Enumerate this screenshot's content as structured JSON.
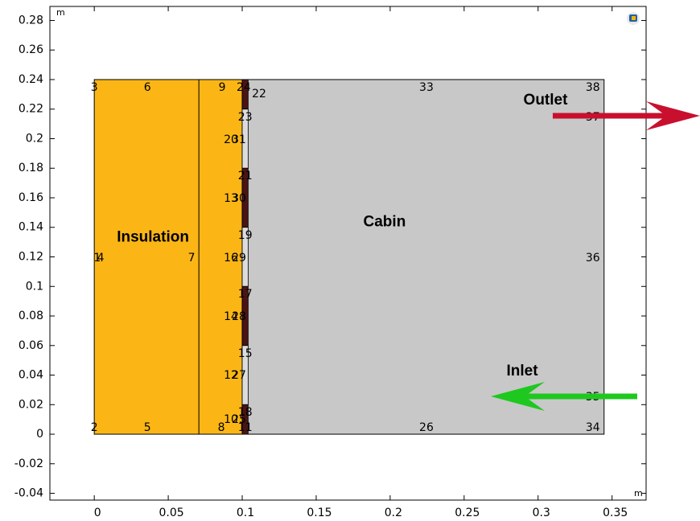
{
  "chart_data": {
    "type": "geometry",
    "x_unit": "m",
    "y_unit": "m",
    "xlim": [
      -0.03,
      0.373
    ],
    "ylim": [
      -0.0446,
      0.2895
    ],
    "xticks": [
      0,
      0.05,
      0.1,
      0.15,
      0.2,
      0.25,
      0.3,
      0.35
    ],
    "yticks": [
      -0.04,
      -0.02,
      0,
      0.02,
      0.04,
      0.06,
      0.08,
      0.1,
      0.12,
      0.14,
      0.16,
      0.18,
      0.2,
      0.22,
      0.24,
      0.26,
      0.28
    ],
    "domains": [
      {
        "name": "Insulation",
        "color": "#fbb616",
        "x": [
          0,
          0.1
        ],
        "y": [
          0,
          0.24
        ],
        "divider": 0.0707
      },
      {
        "name": "Cabin",
        "color": "#c8c8c8",
        "x": [
          0.1,
          0.3446
        ],
        "y": [
          0,
          0.24
        ]
      }
    ],
    "boundaries": [
      {
        "color": "#4a1414",
        "x": [
          0.1,
          0.104
        ],
        "y": [
          0.22,
          0.24
        ]
      },
      {
        "color": "#dcdcdc",
        "x": [
          0.1,
          0.104
        ],
        "y": [
          0.18,
          0.22
        ]
      },
      {
        "color": "#4a1414",
        "x": [
          0.1,
          0.104
        ],
        "y": [
          0.14,
          0.18
        ]
      },
      {
        "color": "#dcdcdc",
        "x": [
          0.1,
          0.104
        ],
        "y": [
          0.1,
          0.14
        ]
      },
      {
        "color": "#4a1414",
        "x": [
          0.1,
          0.104
        ],
        "y": [
          0.06,
          0.1
        ]
      },
      {
        "color": "#dcdcdc",
        "x": [
          0.1,
          0.104
        ],
        "y": [
          0.02,
          0.06
        ]
      },
      {
        "color": "#4a1414",
        "x": [
          0.1,
          0.104
        ],
        "y": [
          0,
          0.02
        ]
      }
    ],
    "edge_labels": [
      {
        "text": "3",
        "x": 0,
        "y": 0.2346
      },
      {
        "text": "6",
        "x": 0.0359,
        "y": 0.2346
      },
      {
        "text": "9",
        "x": 0.0864,
        "y": 0.2346
      },
      {
        "text": "24",
        "x": 0.101,
        "y": 0.2346
      },
      {
        "text": "22",
        "x": 0.1114,
        "y": 0.2302
      },
      {
        "text": "33",
        "x": 0.2245,
        "y": 0.2346
      },
      {
        "text": "38",
        "x": 0.337,
        "y": 0.2346
      },
      {
        "text": "37",
        "x": 0.337,
        "y": 0.2144
      },
      {
        "text": "23",
        "x": 0.102,
        "y": 0.2144
      },
      {
        "text": "20",
        "x": 0.0924,
        "y": 0.1992
      },
      {
        "text": "31",
        "x": 0.0978,
        "y": 0.1992
      },
      {
        "text": "21",
        "x": 0.102,
        "y": 0.1747
      },
      {
        "text": "13",
        "x": 0.0924,
        "y": 0.1595
      },
      {
        "text": "30",
        "x": 0.0978,
        "y": 0.1595
      },
      {
        "text": "19",
        "x": 0.102,
        "y": 0.1344
      },
      {
        "text": "1",
        "x": 0.002,
        "y": 0.1192
      },
      {
        "text": "4",
        "x": 0.0043,
        "y": 0.1192
      },
      {
        "text": "7",
        "x": 0.0658,
        "y": 0.1192
      },
      {
        "text": "16",
        "x": 0.0924,
        "y": 0.1192
      },
      {
        "text": "29",
        "x": 0.0978,
        "y": 0.1192
      },
      {
        "text": "36",
        "x": 0.337,
        "y": 0.1192
      },
      {
        "text": "17",
        "x": 0.102,
        "y": 0.0947
      },
      {
        "text": "14",
        "x": 0.0924,
        "y": 0.0795
      },
      {
        "text": "28",
        "x": 0.0978,
        "y": 0.0795
      },
      {
        "text": "15",
        "x": 0.102,
        "y": 0.0544
      },
      {
        "text": "12",
        "x": 0.0924,
        "y": 0.0397
      },
      {
        "text": "27",
        "x": 0.0978,
        "y": 0.0397
      },
      {
        "text": "35",
        "x": 0.337,
        "y": 0.025
      },
      {
        "text": "18",
        "x": 0.102,
        "y": 0.0147
      },
      {
        "text": "10",
        "x": 0.0924,
        "y": 0.0098
      },
      {
        "text": "25",
        "x": 0.0978,
        "y": 0.0098
      },
      {
        "text": "2",
        "x": 0,
        "y": 0.0044
      },
      {
        "text": "5",
        "x": 0.0359,
        "y": 0.0044
      },
      {
        "text": "8",
        "x": 0.0859,
        "y": 0.0044
      },
      {
        "text": "11",
        "x": 0.102,
        "y": 0.0044
      },
      {
        "text": "26",
        "x": 0.2245,
        "y": 0.0044
      },
      {
        "text": "34",
        "x": 0.337,
        "y": 0.0044
      }
    ],
    "annotations": [
      {
        "text": "Outlet"
      },
      {
        "text": "Inlet"
      }
    ]
  }
}
